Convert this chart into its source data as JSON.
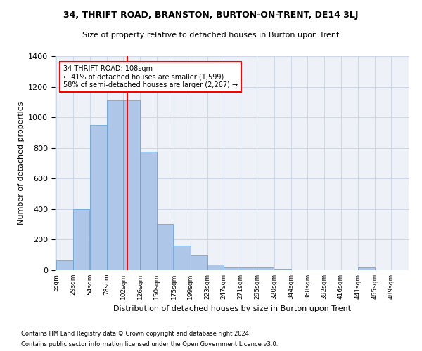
{
  "title": "34, THRIFT ROAD, BRANSTON, BURTON-ON-TRENT, DE14 3LJ",
  "subtitle": "Size of property relative to detached houses in Burton upon Trent",
  "xlabel": "Distribution of detached houses by size in Burton upon Trent",
  "ylabel": "Number of detached properties",
  "footnote1": "Contains HM Land Registry data © Crown copyright and database right 2024.",
  "footnote2": "Contains public sector information licensed under the Open Government Licence v3.0.",
  "bin_labels": [
    "5sqm",
    "29sqm",
    "54sqm",
    "78sqm",
    "102sqm",
    "126sqm",
    "150sqm",
    "175sqm",
    "199sqm",
    "223sqm",
    "247sqm",
    "271sqm",
    "295sqm",
    "320sqm",
    "344sqm",
    "368sqm",
    "392sqm",
    "416sqm",
    "441sqm",
    "465sqm",
    "489sqm"
  ],
  "bin_edges": [
    5,
    29,
    54,
    78,
    102,
    126,
    150,
    175,
    199,
    223,
    247,
    271,
    295,
    320,
    344,
    368,
    392,
    416,
    441,
    465,
    489
  ],
  "bar_heights": [
    65,
    400,
    950,
    1110,
    1110,
    775,
    305,
    160,
    100,
    35,
    20,
    18,
    20,
    10,
    0,
    0,
    0,
    0,
    18,
    0,
    0
  ],
  "bar_color": "#aec6e8",
  "bar_edgecolor": "#5a9fd4",
  "grid_color": "#d0d8e8",
  "bg_color": "#eef2f8",
  "vline_x": 108,
  "vline_color": "red",
  "annotation_text": "34 THRIFT ROAD: 108sqm\n← 41% of detached houses are smaller (1,599)\n58% of semi-detached houses are larger (2,267) →",
  "annotation_box_color": "white",
  "annotation_box_edgecolor": "red",
  "ylim": [
    0,
    1400
  ],
  "yticks": [
    0,
    200,
    400,
    600,
    800,
    1000,
    1200,
    1400
  ]
}
